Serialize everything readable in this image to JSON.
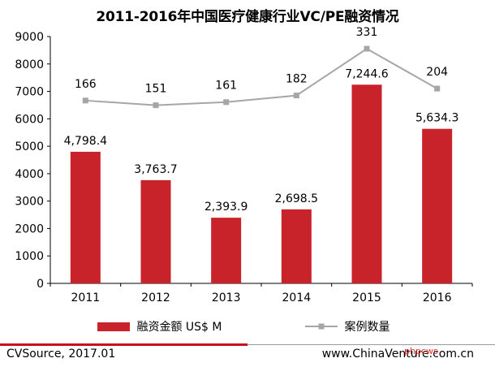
{
  "chart_data": {
    "type": "bar+line",
    "title": "2011-2016年中国医疗健康行业VC/PE融资情况",
    "categories": [
      "2011",
      "2012",
      "2013",
      "2014",
      "2015",
      "2016"
    ],
    "yticks": [
      "0",
      "1000",
      "2000",
      "3000",
      "4000",
      "5000",
      "6000",
      "7000",
      "8000",
      "9000"
    ],
    "ylim": [
      0,
      9000
    ],
    "series": [
      {
        "name": "融资金额 US$ M",
        "type": "bar",
        "color": "#c8222a",
        "values": [
          4798.4,
          3763.7,
          2393.9,
          2698.5,
          7244.6,
          5634.3
        ],
        "labels": [
          "4,798.4",
          "3,763.7",
          "2,393.9",
          "2,698.5",
          "7,244.6",
          "5,634.3"
        ]
      },
      {
        "name": "案例数量",
        "type": "line",
        "color": "#a6a6a6",
        "values": [
          166,
          151,
          161,
          182,
          331,
          204
        ],
        "labels": [
          "166",
          "151",
          "161",
          "182",
          "331",
          "204"
        ]
      }
    ]
  },
  "footer": {
    "source": "CVSource, 2017.01",
    "website": "www.ChinaVenture.com.cn",
    "watermark": "phpcws"
  }
}
